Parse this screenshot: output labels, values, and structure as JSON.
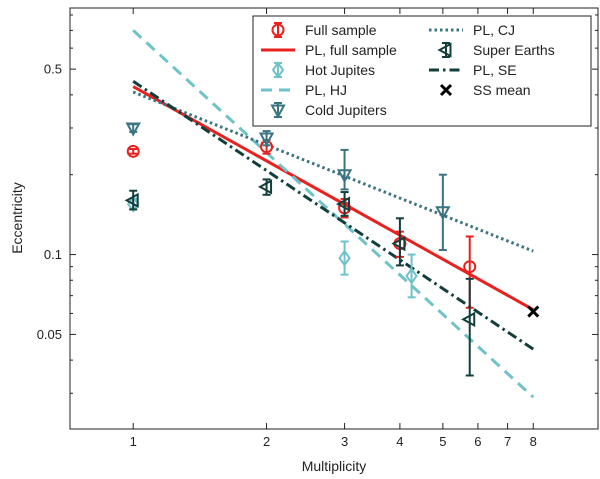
{
  "chart_data": {
    "type": "scatter",
    "xlabel": "Multiplicity",
    "ylabel": "Eccentricity",
    "xscale": "log",
    "yscale": "log",
    "xlim": [
      0.72,
      11.2
    ],
    "ylim": [
      0.022,
      0.85
    ],
    "xticks": [
      1,
      2,
      3,
      4,
      5,
      6,
      7,
      8
    ],
    "xtick_labels": [
      "1",
      "2",
      "3",
      "4",
      "5",
      "6",
      "7",
      "8"
    ],
    "yticks": [
      0.05,
      0.1,
      0.5
    ],
    "ytick_labels": [
      "0.05",
      "0.1",
      "0.5"
    ],
    "legend_position": "top-right",
    "colors": {
      "full": "#e8211f",
      "hj": "#6fc2c8",
      "cj": "#3a7382",
      "se": "#123f3c",
      "ss": "#000000"
    },
    "series": [
      {
        "name": "Full sample",
        "kind": "errorbar",
        "marker": "circle",
        "color": "#e8211f",
        "points": [
          {
            "x": 1,
            "y": 0.245,
            "lo": 0.24,
            "hi": 0.25
          },
          {
            "x": 2,
            "y": 0.255,
            "lo": 0.24,
            "hi": 0.27
          },
          {
            "x": 3,
            "y": 0.15,
            "lo": 0.138,
            "hi": 0.162
          },
          {
            "x": 4,
            "y": 0.11,
            "lo": 0.098,
            "hi": 0.122
          },
          {
            "x": 5.75,
            "y": 0.09,
            "lo": 0.063,
            "hi": 0.117
          }
        ]
      },
      {
        "name": "PL, full sample",
        "kind": "line",
        "dash": "solid",
        "color": "#e8211f",
        "x": [
          1,
          8
        ],
        "y": [
          0.43,
          0.062
        ]
      },
      {
        "name": "Hot Jupites",
        "kind": "errorbar",
        "marker": "diamond",
        "color": "#6fc2c8",
        "points": [
          {
            "x": 1,
            "y": 0.155,
            "lo": 0.148,
            "hi": 0.162
          },
          {
            "x": 3,
            "y": 0.097,
            "lo": 0.084,
            "hi": 0.112
          },
          {
            "x": 4.25,
            "y": 0.083,
            "lo": 0.069,
            "hi": 0.1
          }
        ]
      },
      {
        "name": "PL, HJ",
        "kind": "line",
        "dash": "dashed",
        "color": "#6fc2c8",
        "x": [
          1,
          8
        ],
        "y": [
          0.7,
          0.029
        ]
      },
      {
        "name": "Cold Jupiters",
        "kind": "errorbar",
        "marker": "triangle-down",
        "color": "#3a7382",
        "points": [
          {
            "x": 1,
            "y": 0.3,
            "lo": 0.29,
            "hi": 0.31
          },
          {
            "x": 2,
            "y": 0.275,
            "lo": 0.258,
            "hi": 0.292
          },
          {
            "x": 3,
            "y": 0.2,
            "lo": 0.176,
            "hi": 0.248
          },
          {
            "x": 5,
            "y": 0.145,
            "lo": 0.104,
            "hi": 0.2
          }
        ]
      },
      {
        "name": "PL, CJ",
        "kind": "line",
        "dash": "dotted",
        "color": "#3a7382",
        "x": [
          1,
          8
        ],
        "y": [
          0.41,
          0.103
        ]
      },
      {
        "name": "Super Earths",
        "kind": "errorbar",
        "marker": "triangle-left",
        "color": "#123f3c",
        "points": [
          {
            "x": 1,
            "y": 0.16,
            "lo": 0.148,
            "hi": 0.174
          },
          {
            "x": 2,
            "y": 0.18,
            "lo": 0.168,
            "hi": 0.192
          },
          {
            "x": 3,
            "y": 0.155,
            "lo": 0.14,
            "hi": 0.172
          },
          {
            "x": 4,
            "y": 0.11,
            "lo": 0.091,
            "hi": 0.137
          },
          {
            "x": 5.75,
            "y": 0.057,
            "lo": 0.035,
            "hi": 0.081
          }
        ]
      },
      {
        "name": "PL, SE",
        "kind": "line",
        "dash": "dashdot",
        "color": "#123f3c",
        "x": [
          1,
          8
        ],
        "y": [
          0.45,
          0.044
        ]
      },
      {
        "name": "SS mean",
        "kind": "scatter",
        "marker": "x",
        "color": "#000000",
        "points": [
          {
            "x": 8,
            "y": 0.061
          }
        ]
      }
    ],
    "legend": {
      "columns": [
        [
          "Full sample",
          "PL, full sample",
          "Hot Jupites",
          "PL, HJ",
          "Cold Jupiters"
        ],
        [
          "PL, CJ",
          "Super Earths",
          "PL, SE",
          "SS mean"
        ]
      ]
    }
  }
}
